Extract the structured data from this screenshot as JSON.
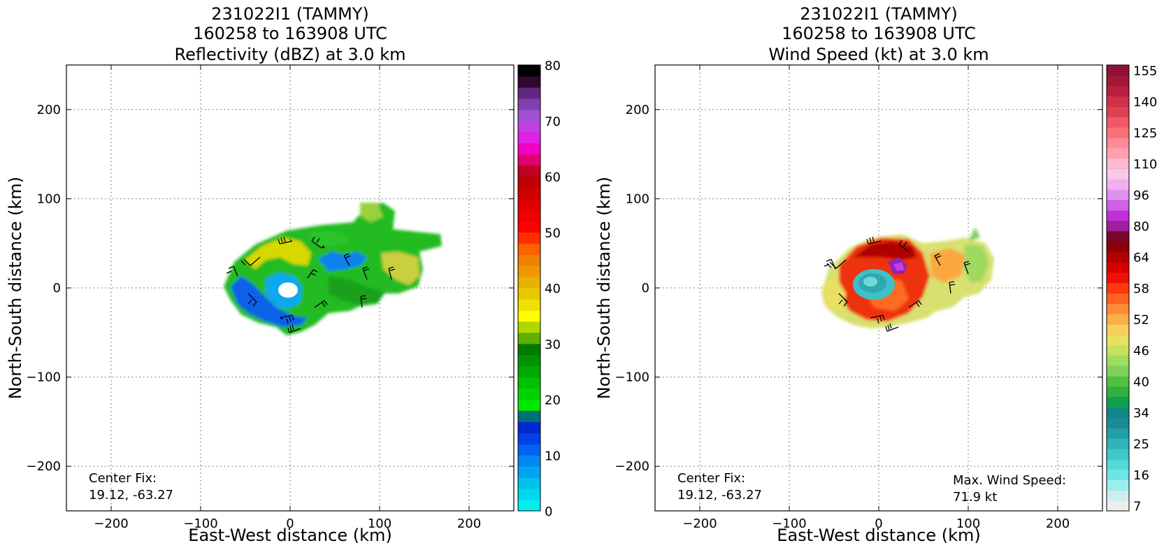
{
  "panels": [
    {
      "id": "reflectivity",
      "title": [
        "231022I1 (TAMMY)",
        "160258 to 163908 UTC",
        "Reflectivity (dBZ) at 3.0 km"
      ],
      "xlabel": "East-West distance (km)",
      "ylabel": "North-South distance (km)",
      "center_fix_label": "Center Fix:",
      "center_fix_value": "19.12, -63.27",
      "max_wind_label": "",
      "max_wind_value": ""
    },
    {
      "id": "windspeed",
      "title": [
        "231022I1 (TAMMY)",
        "160258 to 163908 UTC",
        "Wind Speed (kt) at 3.0 km"
      ],
      "xlabel": "East-West distance (km)",
      "ylabel": "North-South distance (km)",
      "center_fix_label": "Center Fix:",
      "center_fix_value": "19.12, -63.27",
      "max_wind_label": "Max. Wind Speed:",
      "max_wind_value": "71.9 kt"
    }
  ],
  "chart_data": [
    {
      "type": "heatmap",
      "title": "231022I1 (TAMMY) 160258 to 163908 UTC Reflectivity (dBZ) at 3.0 km",
      "xlabel": "East-West distance (km)",
      "ylabel": "North-South distance (km)",
      "xlim": [
        -250,
        250
      ],
      "ylim": [
        -250,
        250
      ],
      "xticks": [
        -200,
        -100,
        0,
        100,
        200
      ],
      "yticks": [
        -200,
        -100,
        0,
        100,
        200
      ],
      "grid": true,
      "colorbar": {
        "min": 0,
        "max": 80,
        "step": 2.5,
        "ticks": [
          0,
          10,
          20,
          30,
          40,
          50,
          60,
          70,
          80
        ],
        "colors": [
          "#00eeee",
          "#00d8ee",
          "#00c0ee",
          "#00a4f0",
          "#0088f0",
          "#0064f0",
          "#0040e8",
          "#0028d0",
          "#007078",
          "#00e800",
          "#00d400",
          "#00c000",
          "#00a800",
          "#009400",
          "#007c00",
          "#60b000",
          "#b0d800",
          "#ffff00",
          "#f0e000",
          "#e8c800",
          "#e8b000",
          "#f09800",
          "#f08000",
          "#ff6000",
          "#ff3000",
          "#ff0000",
          "#f00000",
          "#e00000",
          "#d00000",
          "#c00000",
          "#c00020",
          "#e00070",
          "#f000c0",
          "#e020e8",
          "#c040e0",
          "#a050d0",
          "#8040b0",
          "#602880",
          "#300830",
          "#000000"
        ]
      },
      "echo_region": {
        "approx_extent_x": [
          -75,
          170
        ],
        "approx_extent_y": [
          -60,
          100
        ],
        "eye_center": [
          0,
          0
        ]
      }
    },
    {
      "type": "heatmap",
      "title": "231022I1 (TAMMY) 160258 to 163908 UTC Wind Speed (kt) at 3.0 km",
      "xlabel": "East-West distance (km)",
      "ylabel": "North-South distance (km)",
      "xlim": [
        -250,
        250
      ],
      "ylim": [
        -250,
        250
      ],
      "xticks": [
        -200,
        -100,
        0,
        100,
        200
      ],
      "yticks": [
        -200,
        -100,
        0,
        100,
        200
      ],
      "grid": true,
      "colorbar": {
        "tick_labels": [
          "7",
          "16",
          "25",
          "34",
          "40",
          "46",
          "52",
          "58",
          "64",
          "80",
          "96",
          "110",
          "125",
          "140",
          "155"
        ],
        "tick_bins": [
          0,
          3,
          6,
          9,
          12,
          15,
          18,
          21,
          24,
          27,
          30,
          33,
          36,
          39,
          42
        ],
        "colors": [
          "#eeeeee",
          "#cceeee",
          "#99eeee",
          "#70e4e4",
          "#55d8d8",
          "#40c8c8",
          "#30b4b8",
          "#20a0a8",
          "#1a8c98",
          "#108888",
          "#10a050",
          "#30b040",
          "#50c040",
          "#80d060",
          "#a0dc60",
          "#c8e060",
          "#e8e060",
          "#f8d060",
          "#fcb048",
          "#fc8a38",
          "#ff6020",
          "#ff3810",
          "#ee1008",
          "#d80000",
          "#b00000",
          "#880008",
          "#780830",
          "#a020a0",
          "#c030d8",
          "#d060e8",
          "#e090f0",
          "#f0b0f0",
          "#f8c8e8",
          "#ffb8d0",
          "#ffa0b0",
          "#ff8a98",
          "#f87078",
          "#f05868",
          "#e04050",
          "#d03048",
          "#b82040",
          "#a01838",
          "#901038"
        ]
      },
      "max_wind_speed_kt": 71.9,
      "echo_region": {
        "approx_extent_x": [
          -65,
          130
        ],
        "approx_extent_y": [
          -55,
          75
        ],
        "eye_center": [
          0,
          0
        ]
      }
    }
  ]
}
